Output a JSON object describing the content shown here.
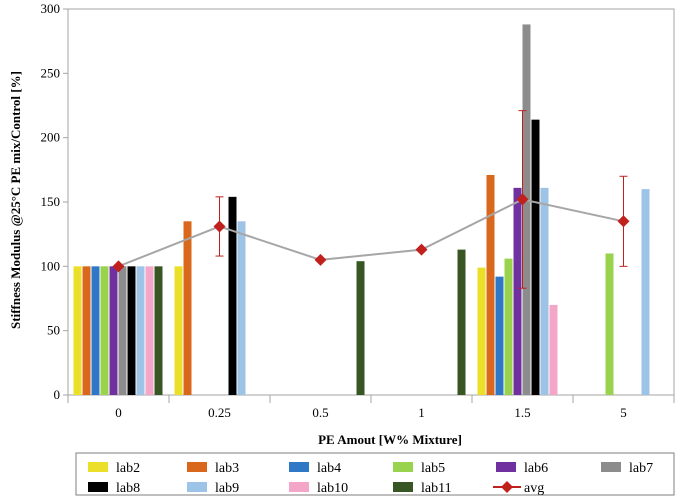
{
  "chart_data": {
    "type": "bar",
    "title": "",
    "xlabel": "PE Amout [W% Mixture]",
    "ylabel": "Stiffness Modulus @25°C PE mix/Control [%]",
    "ylim": [
      0,
      300
    ],
    "yticks": [
      0,
      50,
      100,
      150,
      200,
      250,
      300
    ],
    "categories": [
      "0",
      "0.25",
      "0.5",
      "1",
      "1.5",
      "5"
    ],
    "grid": false,
    "legend_position": "bottom",
    "series": [
      {
        "name": "lab2",
        "color": "#ecdf2a",
        "values": [
          100,
          100,
          null,
          null,
          99,
          null
        ]
      },
      {
        "name": "lab3",
        "color": "#d9681c",
        "values": [
          100,
          135,
          null,
          null,
          171,
          null
        ]
      },
      {
        "name": "lab4",
        "color": "#2e78c6",
        "values": [
          100,
          null,
          null,
          null,
          92,
          null
        ]
      },
      {
        "name": "lab5",
        "color": "#99d34d",
        "values": [
          100,
          null,
          null,
          null,
          106,
          110
        ]
      },
      {
        "name": "lab6",
        "color": "#7030a0",
        "values": [
          100,
          null,
          null,
          null,
          161,
          null
        ]
      },
      {
        "name": "lab7",
        "color": "#8c8c8c",
        "values": [
          100,
          null,
          null,
          null,
          288,
          null
        ]
      },
      {
        "name": "lab8",
        "color": "#000000",
        "values": [
          100,
          154,
          null,
          null,
          214,
          null
        ]
      },
      {
        "name": "lab9",
        "color": "#9dc3e6",
        "values": [
          100,
          135,
          null,
          null,
          161,
          160
        ]
      },
      {
        "name": "lab10",
        "color": "#f4a6c9",
        "values": [
          100,
          null,
          null,
          null,
          70,
          null
        ]
      },
      {
        "name": "lab11",
        "color": "#375623",
        "values": [
          100,
          null,
          104,
          113,
          null,
          null
        ]
      }
    ],
    "avg": {
      "name": "avg",
      "color": "#c0211d",
      "line_color": "#a6a6a6",
      "values": [
        100,
        131,
        105,
        113,
        152,
        135
      ],
      "errors": [
        null,
        23,
        null,
        null,
        69,
        35
      ]
    }
  }
}
